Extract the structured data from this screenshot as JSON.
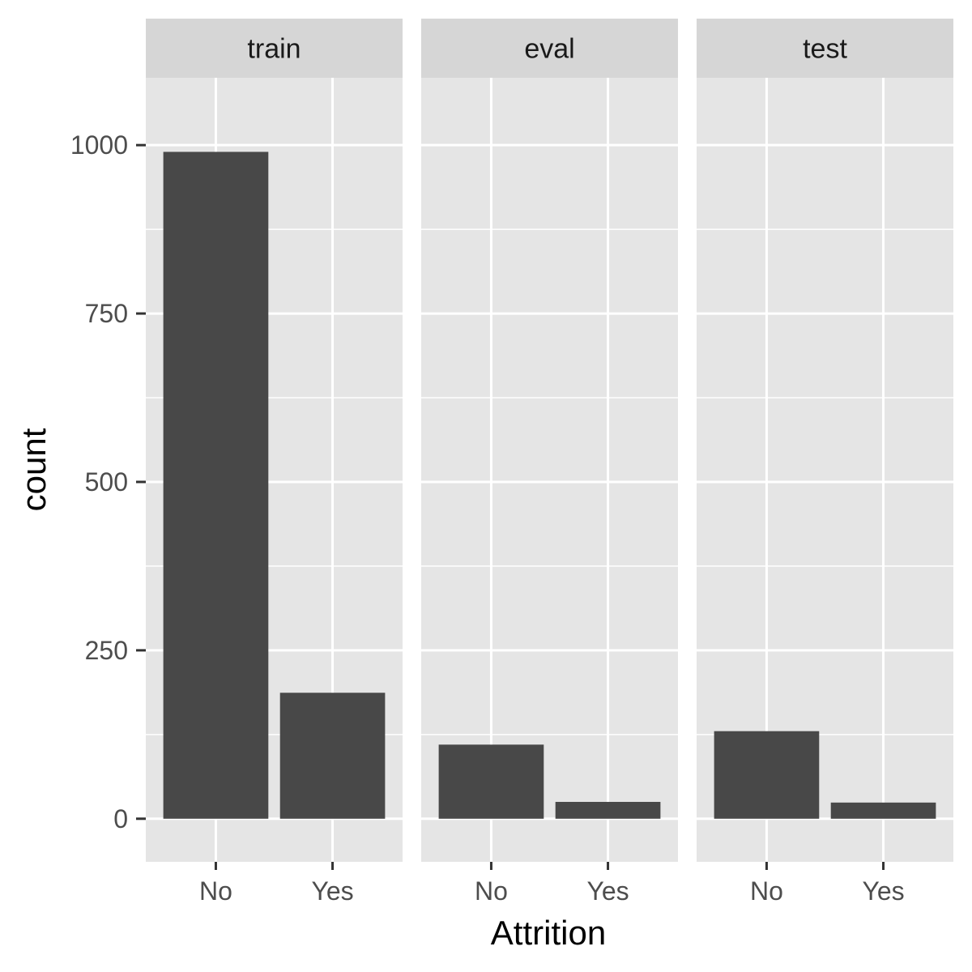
{
  "chart_data": {
    "type": "bar",
    "xlabel": "Attrition",
    "ylabel": "count",
    "ylim": [
      -64,
      1100
    ],
    "y_ticks": [
      0,
      250,
      500,
      750,
      1000
    ],
    "y_tick_labels": [
      "0",
      "250",
      "500",
      "750",
      "1000"
    ],
    "categories": [
      "No",
      "Yes"
    ],
    "facets": [
      {
        "label": "train",
        "values": [
          990,
          187
        ]
      },
      {
        "label": "eval",
        "values": [
          110,
          25
        ]
      },
      {
        "label": "test",
        "values": [
          130,
          24
        ]
      }
    ],
    "bar_color": "#484848",
    "panel_color": "#e5e5e5",
    "strip_color": "#d6d6d6",
    "grid_color": "#ffffff"
  }
}
